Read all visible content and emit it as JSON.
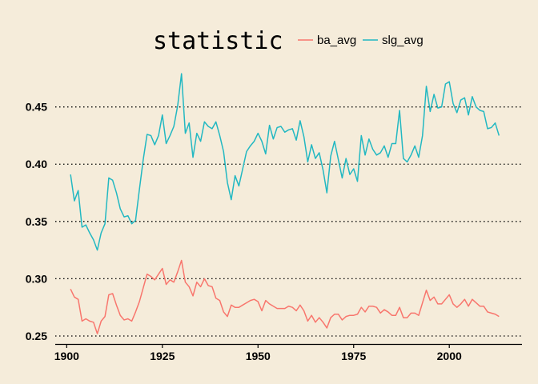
{
  "chart_data": {
    "type": "line",
    "title": "",
    "xlabel": "",
    "ylabel": "",
    "legend": {
      "title": "statistic",
      "position": "top"
    },
    "xlim": [
      1897,
      2019
    ],
    "ylim": [
      0.243,
      0.484
    ],
    "x_ticks": [
      1900,
      1925,
      1950,
      1975,
      2000
    ],
    "y_ticks": [
      0.25,
      0.3,
      0.35,
      0.4,
      0.45
    ],
    "y_tick_labels": [
      "0.25",
      "0.30",
      "0.35",
      "0.40",
      "0.45"
    ],
    "grid": {
      "horizontal": true,
      "vertical": false,
      "style": "dotted"
    },
    "x_start": 1901,
    "series": [
      {
        "name": "ba_avg",
        "color": "#f8766d",
        "values": [
          0.291,
          0.284,
          0.282,
          0.263,
          0.265,
          0.263,
          0.262,
          0.252,
          0.263,
          0.267,
          0.286,
          0.287,
          0.277,
          0.268,
          0.264,
          0.265,
          0.263,
          0.271,
          0.28,
          0.292,
          0.304,
          0.302,
          0.299,
          0.304,
          0.309,
          0.295,
          0.299,
          0.297,
          0.306,
          0.316,
          0.297,
          0.293,
          0.285,
          0.297,
          0.293,
          0.3,
          0.294,
          0.293,
          0.283,
          0.281,
          0.271,
          0.267,
          0.277,
          0.275,
          0.275,
          0.277,
          0.279,
          0.281,
          0.282,
          0.28,
          0.272,
          0.281,
          0.278,
          0.276,
          0.274,
          0.274,
          0.274,
          0.276,
          0.275,
          0.272,
          0.277,
          0.272,
          0.263,
          0.268,
          0.262,
          0.266,
          0.262,
          0.257,
          0.266,
          0.269,
          0.269,
          0.264,
          0.267,
          0.268,
          0.268,
          0.269,
          0.275,
          0.271,
          0.276,
          0.276,
          0.275,
          0.27,
          0.273,
          0.271,
          0.268,
          0.268,
          0.275,
          0.266,
          0.266,
          0.27,
          0.27,
          0.268,
          0.279,
          0.29,
          0.281,
          0.284,
          0.278,
          0.278,
          0.282,
          0.286,
          0.278,
          0.275,
          0.278,
          0.282,
          0.276,
          0.282,
          0.279,
          0.276,
          0.276,
          0.271,
          0.27,
          0.269,
          0.267
        ]
      },
      {
        "name": "slg_avg",
        "color": "#22b8c2",
        "values": [
          0.391,
          0.368,
          0.377,
          0.345,
          0.347,
          0.34,
          0.334,
          0.325,
          0.34,
          0.348,
          0.388,
          0.386,
          0.375,
          0.361,
          0.354,
          0.355,
          0.348,
          0.351,
          0.378,
          0.404,
          0.426,
          0.425,
          0.417,
          0.425,
          0.443,
          0.418,
          0.425,
          0.433,
          0.451,
          0.479,
          0.427,
          0.436,
          0.406,
          0.427,
          0.42,
          0.437,
          0.433,
          0.431,
          0.437,
          0.425,
          0.411,
          0.384,
          0.369,
          0.39,
          0.381,
          0.396,
          0.411,
          0.416,
          0.42,
          0.427,
          0.42,
          0.409,
          0.434,
          0.422,
          0.432,
          0.433,
          0.428,
          0.43,
          0.431,
          0.421,
          0.438,
          0.424,
          0.402,
          0.417,
          0.405,
          0.41,
          0.395,
          0.375,
          0.407,
          0.42,
          0.404,
          0.388,
          0.405,
          0.391,
          0.396,
          0.385,
          0.425,
          0.408,
          0.422,
          0.413,
          0.408,
          0.41,
          0.416,
          0.406,
          0.418,
          0.418,
          0.447,
          0.405,
          0.402,
          0.408,
          0.416,
          0.406,
          0.425,
          0.468,
          0.446,
          0.461,
          0.449,
          0.45,
          0.47,
          0.472,
          0.453,
          0.445,
          0.456,
          0.458,
          0.443,
          0.459,
          0.45,
          0.447,
          0.446,
          0.431,
          0.432,
          0.436,
          0.425
        ]
      }
    ]
  }
}
